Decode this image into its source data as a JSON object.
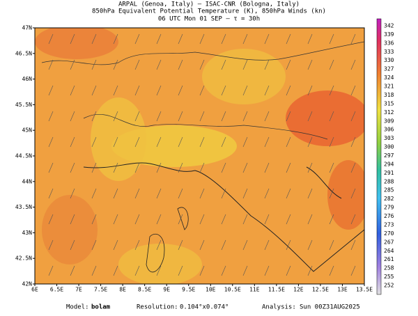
{
  "header": {
    "line1": "ARPAL (Genoa, Italy)  –  ISAC-CNR (Bologna, Italy)",
    "line2": "850hPa Equivalent Potential Temperature (K), 850hPa Winds (kn)",
    "line3": "06 UTC Mon 01 SEP  –  τ = 30h"
  },
  "map": {
    "lat_labels": [
      "47N",
      "46.5N",
      "46N",
      "45.5N",
      "45N",
      "44.5N",
      "44N",
      "43.5N",
      "43N",
      "42.5N",
      "42N"
    ],
    "lon_labels": [
      "6E",
      "6.5E",
      "7E",
      "7.5E",
      "8E",
      "8.5E",
      "9E",
      "9.5E",
      "10E",
      "10.5E",
      "11E",
      "11.5E",
      "12E",
      "12.5E",
      "13E",
      "13.5E"
    ]
  },
  "colorbar": {
    "levels": [
      342,
      339,
      336,
      333,
      330,
      327,
      324,
      321,
      318,
      315,
      312,
      309,
      306,
      303,
      300,
      297,
      294,
      291,
      288,
      285,
      282,
      279,
      276,
      273,
      270,
      267,
      264,
      261,
      258,
      255,
      252
    ]
  },
  "footer": {
    "model_label": "Model:",
    "model": "bolam",
    "resolution_label": "Resolution:",
    "resolution": "0.104°x0.074°",
    "analysis_label": "Analysis:",
    "analysis": "Sun 00Z31AUG2025"
  }
}
